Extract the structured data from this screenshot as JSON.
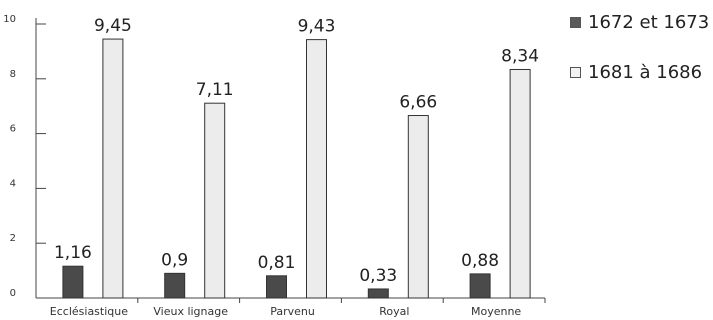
{
  "chart_data": {
    "type": "bar",
    "categories": [
      "Ecclésiastique",
      "Vieux lignage",
      "Parvenu",
      "Royal",
      "Moyenne"
    ],
    "series": [
      {
        "name": "1672 et 1673",
        "values": [
          1.16,
          0.9,
          0.81,
          0.33,
          0.88
        ],
        "labels": [
          "1,16",
          "0,9",
          "0,81",
          "0,33",
          "0,88"
        ],
        "color": "#4a4a4a"
      },
      {
        "name": "1681 à 1686",
        "values": [
          9.45,
          7.11,
          9.43,
          6.66,
          8.34
        ],
        "labels": [
          "9,45",
          "7,11",
          "9,43",
          "6,66",
          "8,34"
        ],
        "color": "#ececec"
      }
    ],
    "yticks": [
      "0",
      "2",
      "4",
      "6",
      "8",
      "10"
    ],
    "ylim": [
      0,
      10
    ],
    "title": "",
    "xlabel": "",
    "ylabel": "",
    "grid": false,
    "legend_position": "top-right"
  }
}
